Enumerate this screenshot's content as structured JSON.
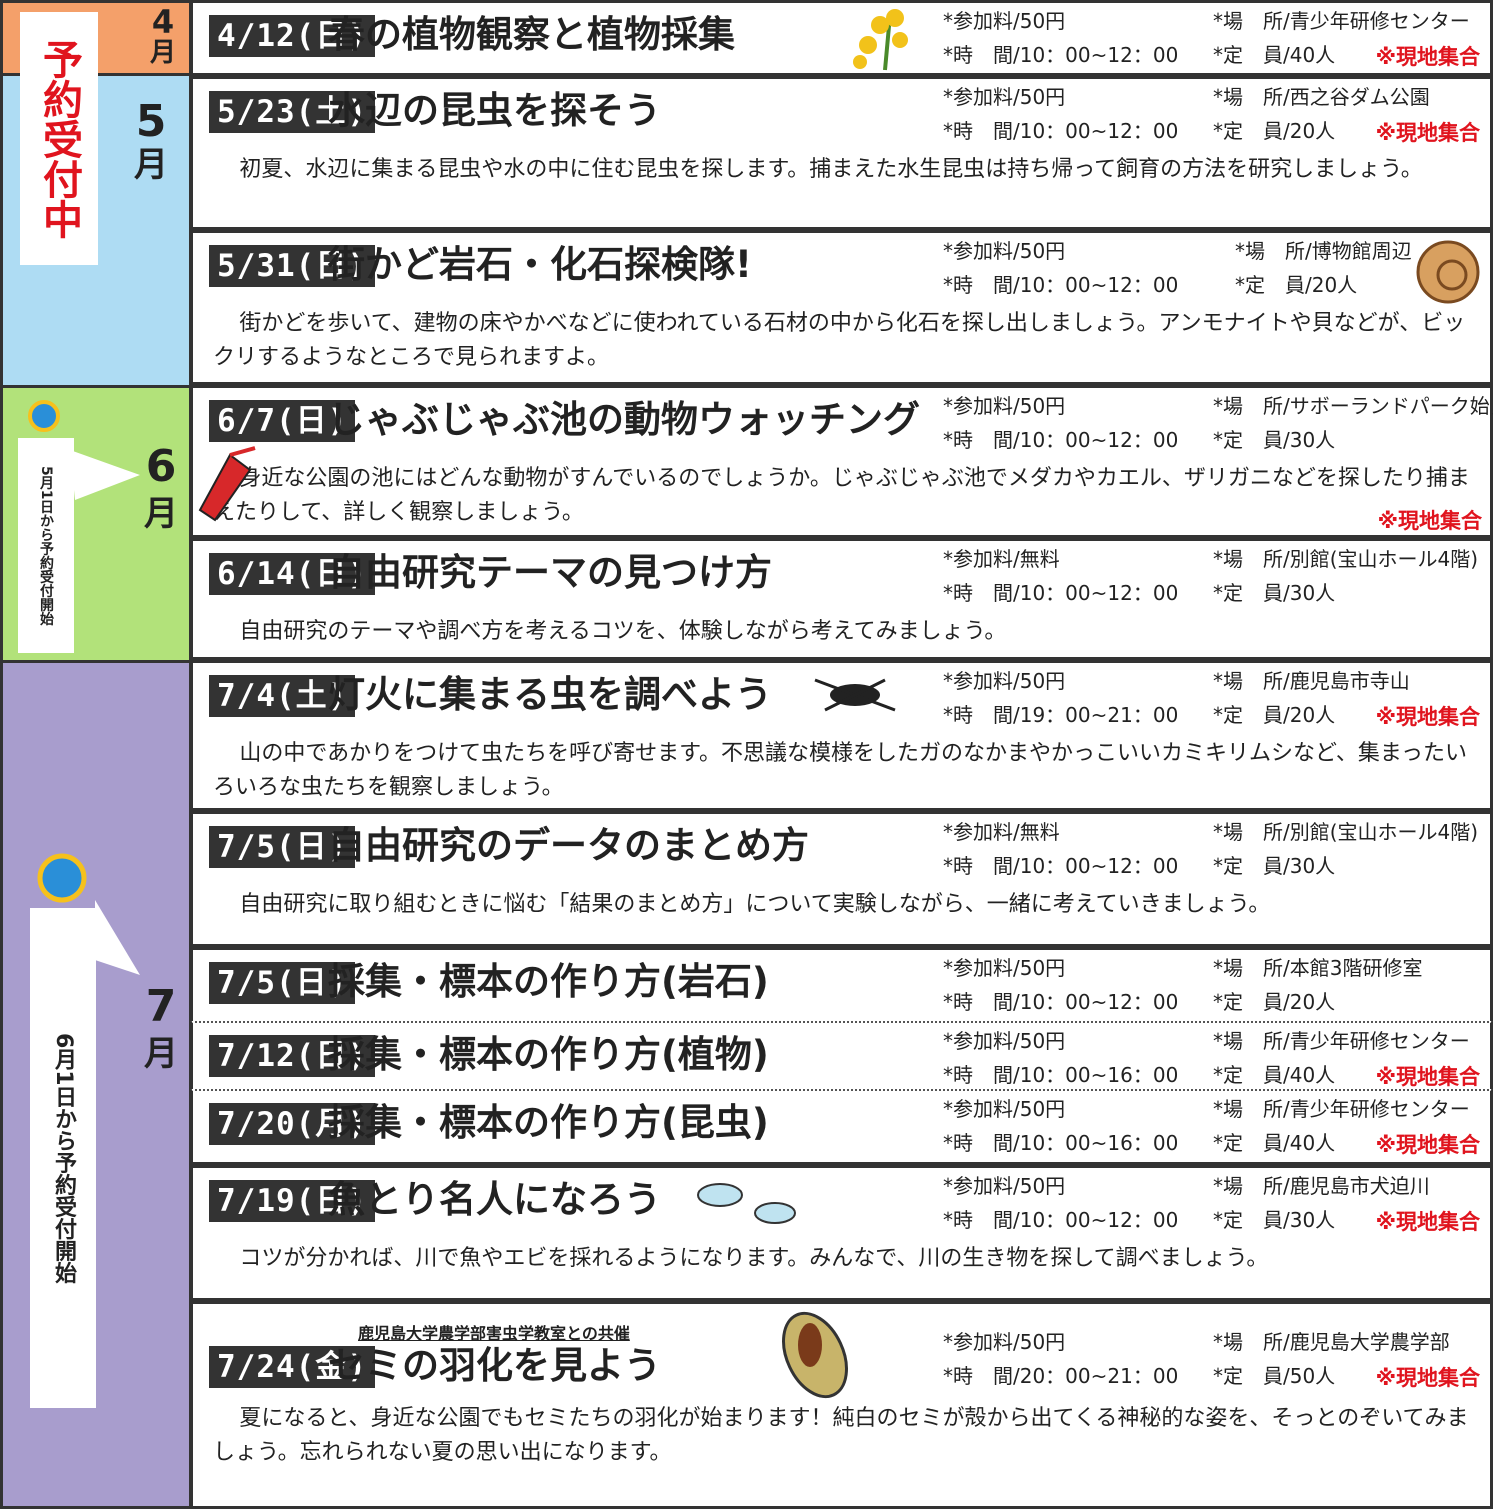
{
  "status": "予約受付中",
  "sections": [
    {
      "number": "4",
      "unit": "月"
    },
    {
      "number": "5",
      "unit": "月"
    },
    {
      "number": "6",
      "unit": "月"
    },
    {
      "number": "7",
      "unit": "月"
    }
  ],
  "notes": [
    "5月1日から予約受付開始",
    "6月1日から予約受付開始"
  ],
  "events": [
    {
      "date": "4/12(日)",
      "title": "春の植物観察と植物採集",
      "fee": "*参加料/50円",
      "place": "*場　所/青少年研修センター",
      "time": "*時　間/10：00~12：00",
      "capacity": "*定　員/40人",
      "meeting": "※現地集合"
    },
    {
      "date": "5/23(土)",
      "title": "水辺の昆虫を探そう",
      "fee": "*参加料/50円",
      "place": "*場　所/西之谷ダム公園",
      "time": "*時　間/10：00~12：00",
      "capacity": "*定　員/20人",
      "meeting": "※現地集合",
      "description": "初夏、水辺に集まる昆虫や水の中に住む昆虫を探します。捕まえた水生昆虫は持ち帰って飼育の方法を研究しましょう。"
    },
    {
      "date": "5/31(日)",
      "title": "街かど岩石・化石探検隊!",
      "fee": "*参加料/50円",
      "place": "*場　所/博物館周辺",
      "time": "*時　間/10：00~12：00",
      "capacity": "*定　員/20人",
      "description": "街かどを歩いて、建物の床やかべなどに使われている石材の中から化石を探し出しましょう。アンモナイトや貝などが、ビックリするようなところで見られますよ。"
    },
    {
      "date": "6/7(日)",
      "title": "じゃぶじゃぶ池の動物ウォッチング",
      "fee": "*参加料/50円",
      "place": "*場　所/サボーランドパーク始良",
      "time": "*時　間/10：00~12：00",
      "capacity": "*定　員/30人",
      "meeting": "※現地集合",
      "description": "身近な公園の池にはどんな動物がすんでいるのでしょうか。じゃぶじゃぶ池でメダカやカエル、ザリガニなどを探したり捕まえたりして、詳しく観察しましょう。"
    },
    {
      "date": "6/14(日)",
      "title": "自由研究テーマの見つけ方",
      "fee": "*参加料/無料",
      "place": "*場　所/別館(宝山ホール4階)",
      "time": "*時　間/10：00~12：00",
      "capacity": "*定　員/30人",
      "description": "自由研究のテーマや調べ方を考えるコツを、体験しながら考えてみましょう。"
    },
    {
      "date": "7/4(土)",
      "title": "灯火に集まる虫を調べよう",
      "fee": "*参加料/50円",
      "place": "*場　所/鹿児島市寺山",
      "time": "*時　間/19：00~21：00",
      "capacity": "*定　員/20人",
      "meeting": "※現地集合",
      "description": "山の中であかりをつけて虫たちを呼び寄せます。不思議な模様をしたガのなかまやかっこいいカミキリムシなど、集まったいろいろな虫たちを観察しましょう。"
    },
    {
      "date": "7/5(日)",
      "title": "自由研究のデータのまとめ方",
      "fee": "*参加料/無料",
      "place": "*場　所/別館(宝山ホール4階)",
      "time": "*時　間/10：00~12：00",
      "capacity": "*定　員/30人",
      "description": "自由研究に取り組むときに悩む「結果のまとめ方」について実験しながら、一緒に考えていきましょう。"
    },
    {
      "date": "7/5(日)",
      "title": "採集・標本の作り方(岩石)",
      "fee": "*参加料/50円",
      "place": "*場　所/本館3階研修室",
      "time": "*時　間/10：00~12：00",
      "capacity": "*定　員/20人"
    },
    {
      "date": "7/12(日)",
      "title": "採集・標本の作り方(植物)",
      "fee": "*参加料/50円",
      "place": "*場　所/青少年研修センター",
      "time": "*時　間/10：00~16：00",
      "capacity": "*定　員/40人",
      "meeting": "※現地集合"
    },
    {
      "date": "7/20(月)",
      "title": "採集・標本の作り方(昆虫)",
      "fee": "*参加料/50円",
      "place": "*場　所/青少年研修センター",
      "time": "*時　間/10：00~16：00",
      "capacity": "*定　員/40人",
      "meeting": "※現地集合"
    },
    {
      "date": "7/19(日)",
      "title": "魚とり名人になろう",
      "fee": "*参加料/50円",
      "place": "*場　所/鹿児島市犬迫川",
      "time": "*時　間/10：00~12：00",
      "capacity": "*定　員/30人",
      "meeting": "※現地集合",
      "description": "コツが分かれば、川で魚やエビを採れるようになります。みんなで、川の生き物を探して調べましょう。"
    },
    {
      "date": "7/24(金)",
      "sponsor": "鹿児島大学農学部害虫学教室との共催",
      "title": "セミの羽化を見よう",
      "fee": "*参加料/50円",
      "place": "*場　所/鹿児島大学農学部",
      "time": "*時　間/20：00~21：00",
      "capacity": "*定　員/50人",
      "meeting": "※現地集合",
      "description": "夏になると、身近な公園でもセミたちの羽化が始まります！純白のセミが殻から出てくる神秘的な姿を、そっとのぞいてみましょう。忘れられない夏の思い出になります。"
    }
  ]
}
